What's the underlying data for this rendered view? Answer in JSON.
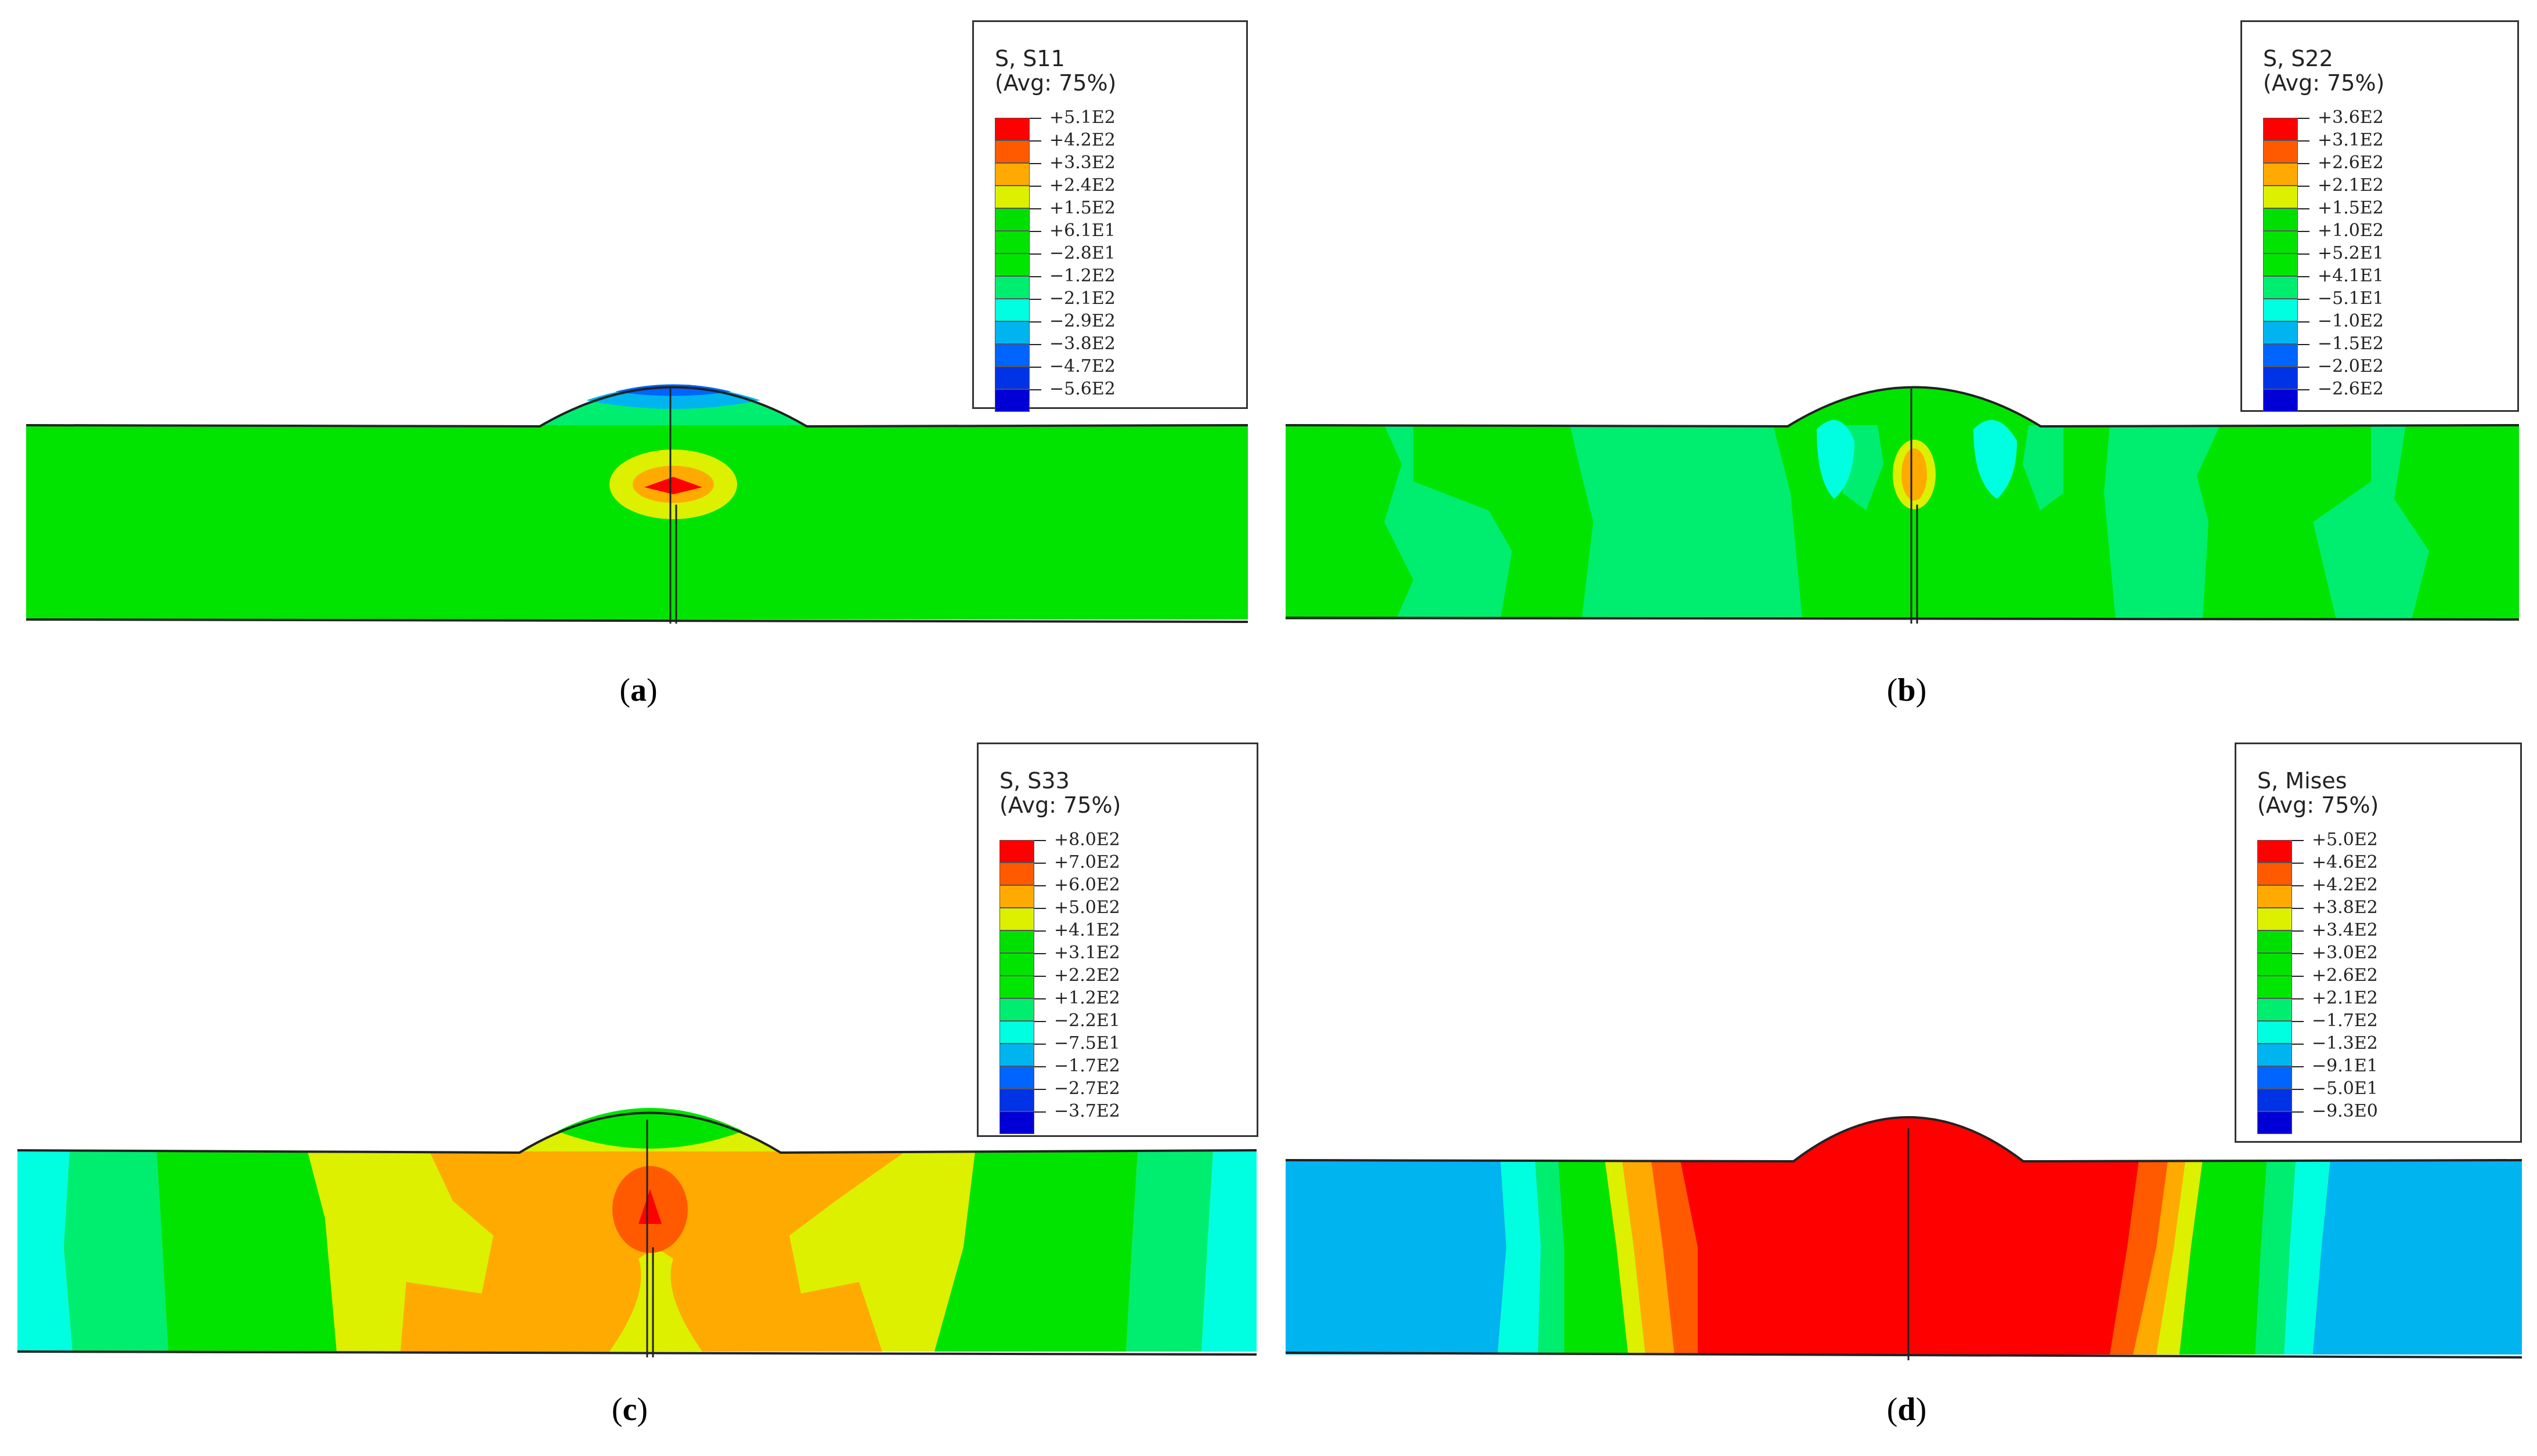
{
  "panels": [
    {
      "id": "a",
      "caption": "a",
      "legend": {
        "title": "S, S11",
        "avg": "(Avg: 75%)",
        "values": [
          "+5.1E2",
          "+4.2E2",
          "+3.3E2",
          "+2.4E2",
          "+1.5E2",
          "+6.1E1",
          "−2.8E1",
          "−1.2E2",
          "−2.1E2",
          "−2.9E2",
          "−3.8E2",
          "−4.7E2",
          "−5.6E2"
        ]
      }
    },
    {
      "id": "b",
      "caption": "b",
      "legend": {
        "title": "S, S22",
        "avg": "(Avg: 75%)",
        "values": [
          "+3.6E2",
          "+3.1E2",
          "+2.6E2",
          "+2.1E2",
          "+1.5E2",
          "+1.0E2",
          "+5.2E1",
          "+4.1E1",
          "−5.1E1",
          "−1.0E2",
          "−1.5E2",
          "−2.0E2",
          "−2.6E2"
        ]
      }
    },
    {
      "id": "c",
      "caption": "c",
      "legend": {
        "title": "S, S33",
        "avg": "(Avg: 75%)",
        "values": [
          "+8.0E2",
          "+7.0E2",
          "+6.0E2",
          "+5.0E2",
          "+4.1E2",
          "+3.1E2",
          "+2.2E2",
          "+1.2E2",
          "−2.2E1",
          "−7.5E1",
          "−1.7E2",
          "−2.7E2",
          "−3.7E2"
        ]
      }
    },
    {
      "id": "d",
      "caption": "d",
      "legend": {
        "title": "S, Mises",
        "avg": "(Avg: 75%)",
        "values": [
          "+5.0E2",
          "+4.6E2",
          "+4.2E2",
          "+3.8E2",
          "+3.4E2",
          "+3.0E2",
          "+2.6E2",
          "+2.1E2",
          "−1.7E2",
          "−1.3E2",
          "−9.1E1",
          "−5.0E1",
          "−9.3E0"
        ]
      }
    }
  ],
  "colormap": [
    "#ff0000",
    "#ff5a00",
    "#ffaa00",
    "#dcf000",
    "#00e000",
    "#00e400",
    "#00e600",
    "#00ee70",
    "#00ffe0",
    "#00b4f0",
    "#0064ff",
    "#0032e6",
    "#0000d6"
  ]
}
